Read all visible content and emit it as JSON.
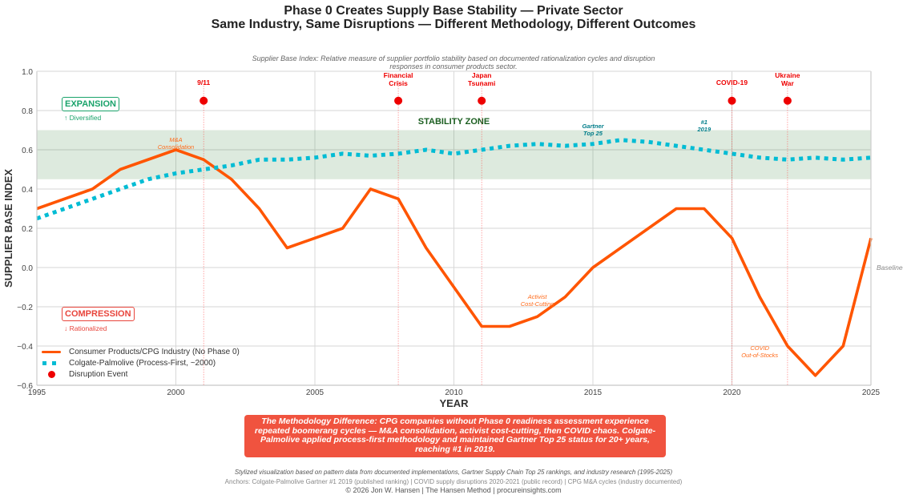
{
  "header": {
    "title": "Phase 0 Creates Supply Base Stability — Private Sector",
    "subtitle": "Same Industry, Same Disruptions — Different Methodology, Different Outcomes"
  },
  "chart_data": {
    "type": "line",
    "title": "Phase 0 Creates Supply Base Stability — Private Sector",
    "subtitle": "Same Industry, Same Disruptions — Different Methodology, Different Outcomes",
    "description": "Supplier Base Index: Relative measure of supplier portfolio stability based on documented rationalization cycles and disruption responses in consumer products sector.",
    "xlabel": "YEAR",
    "ylabel": "SUPPLIER BASE INDEX",
    "xlim": [
      1995,
      2025
    ],
    "ylim": [
      -0.6,
      1.0
    ],
    "xticks": [
      1995,
      2000,
      2005,
      2010,
      2015,
      2020,
      2025
    ],
    "yticks": [
      -0.6,
      -0.4,
      -0.2,
      0.0,
      0.2,
      0.4,
      0.6,
      0.8,
      1.0
    ],
    "ytick_labels": [
      "−0.6",
      "−0.4",
      "−0.2",
      "0.0",
      "0.2",
      "0.4",
      "0.6",
      "0.8",
      "1.0"
    ],
    "grid": true,
    "legend_position": "bottom-left",
    "stability_zone": {
      "label": "STABILITY ZONE",
      "y_range": [
        0.45,
        0.7
      ]
    },
    "baseline_label": "Baseline",
    "zones": {
      "expansion": {
        "label": "EXPANSION",
        "sub": "↑ Diversified"
      },
      "compression": {
        "label": "COMPRESSION",
        "sub": "↓ Rationalized"
      }
    },
    "series": [
      {
        "name": "Consumer Products/CPG Industry (No Phase 0)",
        "color": "#ff5500",
        "style": "solid",
        "x": [
          1995,
          1997,
          1998,
          2000,
          2001,
          2002,
          2003,
          2004,
          2006,
          2007,
          2008,
          2009,
          2011,
          2012,
          2013,
          2014,
          2015,
          2018,
          2019,
          2020,
          2021,
          2022,
          2023,
          2024,
          2025
        ],
        "values": [
          0.3,
          0.4,
          0.5,
          0.6,
          0.55,
          0.45,
          0.3,
          0.1,
          0.2,
          0.4,
          0.35,
          0.1,
          -0.3,
          -0.3,
          -0.25,
          -0.15,
          0.0,
          0.3,
          0.3,
          0.15,
          -0.15,
          -0.4,
          -0.55,
          -0.4,
          0.15
        ]
      },
      {
        "name": "Colgate-Palmolive (Process-First, ~2000)",
        "color": "#00bcd4",
        "style": "dotted",
        "x": [
          1995,
          1997,
          1998,
          1999,
          2000,
          2001,
          2002,
          2003,
          2004,
          2005,
          2006,
          2007,
          2008,
          2009,
          2010,
          2011,
          2012,
          2013,
          2014,
          2015,
          2016,
          2017,
          2018,
          2019,
          2020,
          2021,
          2022,
          2023,
          2024,
          2025
        ],
        "values": [
          0.25,
          0.35,
          0.4,
          0.45,
          0.48,
          0.5,
          0.52,
          0.55,
          0.55,
          0.56,
          0.58,
          0.57,
          0.58,
          0.6,
          0.58,
          0.6,
          0.62,
          0.63,
          0.62,
          0.63,
          0.65,
          0.64,
          0.62,
          0.6,
          0.58,
          0.56,
          0.55,
          0.56,
          0.55,
          0.56
        ]
      }
    ],
    "events": {
      "name": "Disruption Event",
      "color": "#ee0000",
      "y": 0.85,
      "items": [
        {
          "x": 2001,
          "label": [
            "9/11"
          ]
        },
        {
          "x": 2008,
          "label": [
            "Financial",
            "Crisis"
          ]
        },
        {
          "x": 2011,
          "label": [
            "Japan",
            "Tsunami"
          ]
        },
        {
          "x": 2020,
          "label": [
            "COVID-19"
          ]
        },
        {
          "x": 2022,
          "label": [
            "Ukraine",
            "War"
          ]
        }
      ]
    },
    "annotations": [
      {
        "text": [
          "M&A",
          "Consolidation"
        ],
        "x": 2000,
        "y": 0.64,
        "color": "#ff6a1a"
      },
      {
        "text": [
          "Activist",
          "Cost-Cutting"
        ],
        "x": 2013,
        "y": -0.16,
        "color": "#ff6a1a"
      },
      {
        "text": [
          "COVID",
          "Out-of-Stocks"
        ],
        "x": 2021,
        "y": -0.42,
        "color": "#ff6a1a"
      },
      {
        "text": [
          "Gartner",
          "Top 25"
        ],
        "x": 2015,
        "y": 0.71,
        "color": "#007d8a"
      },
      {
        "text": [
          "#1",
          "2019"
        ],
        "x": 2019,
        "y": 0.73,
        "color": "#007d8a"
      }
    ]
  },
  "callout": {
    "text": "The Methodology Difference: CPG companies without Phase 0 readiness assessment experience repeated boomerang cycles — M&A consolidation, activist cost-cutting, then COVID chaos. Colgate-Palmolive applied process-first methodology and maintained Gartner Top 25 status for 20+ years, reaching #1 in 2019."
  },
  "footer": {
    "line1": "Stylized visualization based on pattern data from documented implementations, Gartner Supply Chain Top 25 rankings, and industry research (1995-2025)",
    "line2": "Anchors: Colgate-Palmolive Gartner #1 2019 (published ranking) | COVID supply disruptions 2020-2021 (public record) | CPG M&A cycles (industry documented)",
    "line3": "© 2026 Jon W. Hansen | The Hansen Method | procureinsights.com"
  }
}
